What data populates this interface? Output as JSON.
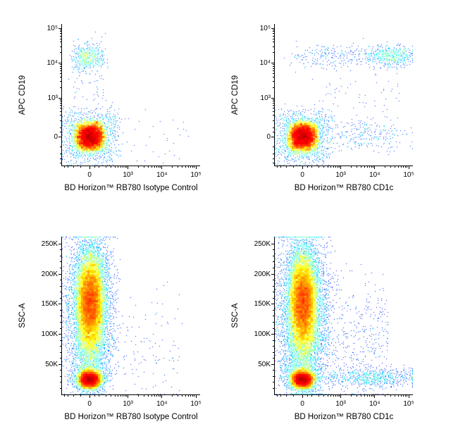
{
  "colors": {
    "background": "#ffffff",
    "axis": "#000000",
    "text": "#000000"
  },
  "chart_data": [
    {
      "id": "cd19-vs-isotype",
      "type": "scatter",
      "subtype": "flow-cytometry-density-plot",
      "xlabel": "BD Horizon™  RB780 Isotype Control",
      "ylabel": "APC CD19",
      "x_axis": {
        "scale": "biex",
        "lin_width": 150,
        "t_min": -1.87,
        "t_max": 7.48,
        "majors": [
          0,
          1000,
          10000,
          100000
        ],
        "labels": [
          "0",
          "10³",
          "10⁴",
          "10⁵"
        ],
        "minors": [
          -400,
          -300,
          -200,
          -100,
          50,
          100,
          200,
          300,
          400,
          500,
          600,
          700,
          800,
          900,
          2000,
          3000,
          4000,
          5000,
          6000,
          7000,
          8000,
          9000,
          20000,
          30000,
          40000,
          50000,
          60000,
          70000,
          80000,
          90000
        ]
      },
      "y_axis": {
        "scale": "biex",
        "lin_width": 150,
        "t_min": -1.87,
        "t_max": 7.48,
        "majors": [
          0,
          1000,
          10000,
          100000
        ],
        "labels": [
          "0",
          "10³",
          "10⁴",
          "10⁵"
        ],
        "minors": [
          -400,
          -300,
          -200,
          -100,
          50,
          100,
          200,
          300,
          400,
          500,
          600,
          700,
          800,
          900,
          2000,
          3000,
          4000,
          5000,
          6000,
          7000,
          8000,
          9000,
          20000,
          30000,
          40000,
          50000,
          60000,
          70000,
          80000,
          90000
        ]
      },
      "populations": [
        {
          "name": "negative-cells-core",
          "n": 6500,
          "x": [
            "norm",
            5,
            80
          ],
          "y": [
            "norm",
            5,
            75
          ]
        },
        {
          "name": "negative-cells-halo",
          "n": 900,
          "x": [
            "norm",
            10,
            230
          ],
          "y": [
            "norm",
            10,
            200
          ]
        },
        {
          "name": "cd19-pos-b-cells",
          "n": 480,
          "x": [
            "norm",
            -15,
            85
          ],
          "y": [
            "lognorm",
            4.17,
            0.18
          ]
        },
        {
          "name": "cd19-pos-halo",
          "n": 60,
          "x": [
            "norm",
            0,
            150
          ],
          "y": [
            "lognorm",
            4.1,
            0.35
          ]
        },
        {
          "name": "intermediate-sparse",
          "n": 55,
          "x": [
            "norm",
            10,
            130
          ],
          "y": [
            "lognorm",
            3.1,
            0.45
          ]
        },
        {
          "name": "right-strays",
          "n": 40,
          "x": [
            "ulog",
            2.5,
            4.9
          ],
          "y": [
            "norm",
            10,
            160
          ]
        }
      ]
    },
    {
      "id": "cd19-vs-cd1c",
      "type": "scatter",
      "subtype": "flow-cytometry-density-plot",
      "xlabel": "BD Horizon™  RB780 CD1c",
      "ylabel": "APC CD19",
      "x_axis": {
        "scale": "biex",
        "lin_width": 150,
        "t_min": -1.87,
        "t_max": 7.48,
        "majors": [
          0,
          1000,
          10000,
          100000
        ],
        "labels": [
          "0",
          "10³",
          "10⁴",
          "10⁵"
        ],
        "minors": [
          -400,
          -300,
          -200,
          -100,
          50,
          100,
          200,
          300,
          400,
          500,
          600,
          700,
          800,
          900,
          2000,
          3000,
          4000,
          5000,
          6000,
          7000,
          8000,
          9000,
          20000,
          30000,
          40000,
          50000,
          60000,
          70000,
          80000,
          90000
        ]
      },
      "y_axis": {
        "scale": "biex",
        "lin_width": 150,
        "t_min": -1.87,
        "t_max": 7.48,
        "majors": [
          0,
          1000,
          10000,
          100000
        ],
        "labels": [
          "0",
          "10³",
          "10⁴",
          "10⁵"
        ],
        "minors": [
          -400,
          -300,
          -200,
          -100,
          50,
          100,
          200,
          300,
          400,
          500,
          600,
          700,
          800,
          900,
          2000,
          3000,
          4000,
          5000,
          6000,
          7000,
          8000,
          9000,
          20000,
          30000,
          40000,
          50000,
          60000,
          70000,
          80000,
          90000
        ]
      },
      "populations": [
        {
          "name": "negative-cells-core",
          "n": 6500,
          "x": [
            "norm",
            5,
            80
          ],
          "y": [
            "norm",
            5,
            75
          ]
        },
        {
          "name": "negative-cells-halo",
          "n": 900,
          "x": [
            "norm",
            10,
            230
          ],
          "y": [
            "norm",
            10,
            200
          ]
        },
        {
          "name": "cd19-pos-cd1c-spread",
          "n": 300,
          "x": [
            "ulog",
            2.35,
            5.0
          ],
          "y": [
            "lognorm",
            4.2,
            0.16
          ]
        },
        {
          "name": "cd19-pos-cd1c-bright",
          "n": 380,
          "x": [
            "lognorm",
            4.5,
            0.3
          ],
          "y": [
            "lognorm",
            4.22,
            0.15
          ]
        },
        {
          "name": "cd19-pos-cd1c-dim",
          "n": 70,
          "x": [
            "norm",
            60,
            120
          ],
          "y": [
            "lognorm",
            4.15,
            0.18
          ]
        },
        {
          "name": "cd1c-pos-low-band",
          "n": 270,
          "x": [
            "lognorm",
            3.7,
            0.65
          ],
          "y": [
            "norm",
            15,
            85
          ]
        },
        {
          "name": "intermediate-sparse",
          "n": 70,
          "x": [
            "ulog",
            2.4,
            4.8
          ],
          "y": [
            "lognorm",
            3.0,
            0.5
          ]
        }
      ]
    },
    {
      "id": "ssc-vs-isotype",
      "type": "scatter",
      "subtype": "flow-cytometry-density-plot",
      "xlabel": "BD Horizon™  RB780 Isotype Control",
      "ylabel": "SSC-A",
      "x_axis": {
        "scale": "biex",
        "lin_width": 150,
        "t_min": -1.87,
        "t_max": 7.48,
        "majors": [
          0,
          1000,
          10000,
          100000
        ],
        "labels": [
          "0",
          "10³",
          "10⁴",
          "10⁵"
        ],
        "minors": [
          -400,
          -300,
          -200,
          -100,
          50,
          100,
          200,
          300,
          400,
          500,
          600,
          700,
          800,
          900,
          2000,
          3000,
          4000,
          5000,
          6000,
          7000,
          8000,
          9000,
          20000,
          30000,
          40000,
          50000,
          60000,
          70000,
          80000,
          90000
        ]
      },
      "y_axis": {
        "scale": "lin",
        "min": 0,
        "max": 262000,
        "majors": [
          50000,
          100000,
          150000,
          200000,
          250000
        ],
        "labels": [
          "50K",
          "100K",
          "150K",
          "200K",
          "250K"
        ],
        "minors": [
          10000,
          20000,
          30000,
          40000,
          60000,
          70000,
          80000,
          90000,
          110000,
          120000,
          130000,
          140000,
          160000,
          170000,
          180000,
          190000,
          210000,
          220000,
          230000,
          240000
        ]
      },
      "populations": [
        {
          "name": "granulocyte-monocyte-blob",
          "n": 15000,
          "x": [
            "norm",
            5,
            72
          ],
          "y": [
            "norm",
            152000,
            40000
          ]
        },
        {
          "name": "blob-halo",
          "n": 2200,
          "x": [
            "norm",
            10,
            190
          ],
          "y": [
            "norm",
            148000,
            60000
          ]
        },
        {
          "name": "lymphocytes",
          "n": 6500,
          "x": [
            "norm",
            0,
            55
          ],
          "y": [
            "norm",
            25000,
            7000
          ]
        },
        {
          "name": "lymphocyte-halo",
          "n": 700,
          "x": [
            "norm",
            0,
            120
          ],
          "y": [
            "norm",
            27000,
            12000
          ]
        },
        {
          "name": "bridge",
          "n": 600,
          "x": [
            "norm",
            0,
            85
          ],
          "y": [
            "uni",
            38000,
            95000
          ]
        },
        {
          "name": "right-sparse",
          "n": 140,
          "x": [
            "ulog",
            2.3,
            4.6
          ],
          "y": [
            "norm",
            70000,
            48000
          ]
        }
      ]
    },
    {
      "id": "ssc-vs-cd1c",
      "type": "scatter",
      "subtype": "flow-cytometry-density-plot",
      "xlabel": "BD Horizon™  RB780 CD1c",
      "ylabel": "SSC-A",
      "x_axis": {
        "scale": "biex",
        "lin_width": 150,
        "t_min": -1.87,
        "t_max": 7.48,
        "majors": [
          0,
          1000,
          10000,
          100000
        ],
        "labels": [
          "0",
          "10³",
          "10⁴",
          "10⁵"
        ],
        "minors": [
          -400,
          -300,
          -200,
          -100,
          50,
          100,
          200,
          300,
          400,
          500,
          600,
          700,
          800,
          900,
          2000,
          3000,
          4000,
          5000,
          6000,
          7000,
          8000,
          9000,
          20000,
          30000,
          40000,
          50000,
          60000,
          70000,
          80000,
          90000
        ]
      },
      "y_axis": {
        "scale": "lin",
        "min": 0,
        "max": 262000,
        "majors": [
          50000,
          100000,
          150000,
          200000,
          250000
        ],
        "labels": [
          "50K",
          "100K",
          "150K",
          "200K",
          "250K"
        ],
        "minors": [
          10000,
          20000,
          30000,
          40000,
          60000,
          70000,
          80000,
          90000,
          110000,
          120000,
          130000,
          140000,
          160000,
          170000,
          180000,
          190000,
          210000,
          220000,
          230000,
          240000
        ]
      },
      "populations": [
        {
          "name": "granulocyte-monocyte-blob",
          "n": 15000,
          "x": [
            "norm",
            5,
            72
          ],
          "y": [
            "norm",
            152000,
            40000
          ]
        },
        {
          "name": "blob-halo",
          "n": 2600,
          "x": [
            "norm",
            15,
            210
          ],
          "y": [
            "norm",
            140000,
            62000
          ]
        },
        {
          "name": "lymphocytes",
          "n": 6500,
          "x": [
            "norm",
            0,
            55
          ],
          "y": [
            "norm",
            25000,
            7000
          ]
        },
        {
          "name": "lymphocyte-halo",
          "n": 700,
          "x": [
            "norm",
            0,
            120
          ],
          "y": [
            "norm",
            27000,
            12000
          ]
        },
        {
          "name": "bridge",
          "n": 600,
          "x": [
            "norm",
            0,
            85
          ],
          "y": [
            "uni",
            38000,
            95000
          ]
        },
        {
          "name": "cd1c-pos-band",
          "n": 700,
          "x": [
            "lognorm",
            3.9,
            0.75
          ],
          "y": [
            "norm",
            27000,
            8000
          ]
        },
        {
          "name": "mid-scatter",
          "n": 500,
          "x": [
            "ulog",
            2.2,
            4.4
          ],
          "y": [
            "norm",
            95000,
            55000
          ]
        }
      ]
    }
  ]
}
